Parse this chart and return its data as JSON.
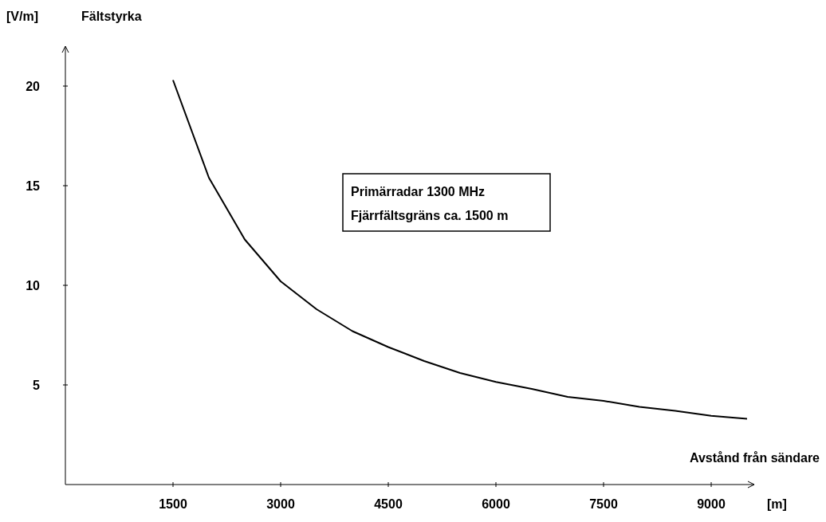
{
  "chart_data": {
    "type": "line",
    "ylabel": "Fältstyrka",
    "xlabel": "Avstånd från sändare",
    "annotations": [
      "Primärradar  1300 MHz",
      "Fjärrfältsgräns ca. 1500 m",
      "[V/m]",
      "[m]"
    ],
    "x": [
      1500,
      2000,
      2500,
      3000,
      3500,
      4000,
      4500,
      5000,
      5500,
      6000,
      6500,
      7000,
      7500,
      8000,
      8500,
      9000,
      9500
    ],
    "series": [
      {
        "color": "#000000",
        "values": [
          20.3,
          15.4,
          12.3,
          10.2,
          8.8,
          7.7,
          6.9,
          6.2,
          5.6,
          5.15,
          4.8,
          4.4,
          4.2,
          3.9,
          3.7,
          3.45,
          3.3
        ]
      }
    ],
    "xlim": [
      0,
      9600
    ],
    "ylim": [
      0,
      22
    ],
    "xticks": [
      1500,
      3000,
      4500,
      6000,
      7500,
      9000
    ],
    "yticks": [
      5,
      10,
      15,
      20
    ],
    "grid": false,
    "marker": "none",
    "line_style": "solid"
  }
}
